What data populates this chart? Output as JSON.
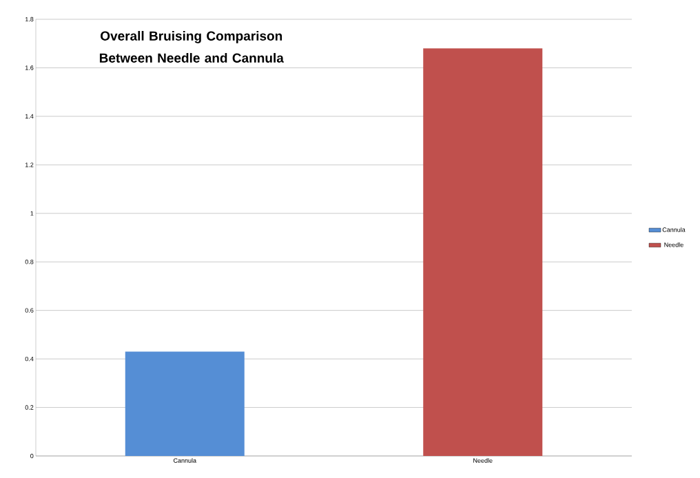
{
  "chart_data": {
    "type": "bar",
    "title": "Overall Bruising Comparison  Between Needle and Cannula",
    "categories": [
      "Cannula",
      "Needle"
    ],
    "series": [
      {
        "name": "Cannula",
        "color": "#558ed5",
        "values": [
          0.43,
          null
        ]
      },
      {
        "name": "Needle",
        "color": "#c0504d",
        "values": [
          null,
          1.68
        ]
      }
    ],
    "ylim": [
      0,
      1.8
    ],
    "yticks": [
      0,
      0.2,
      0.4,
      0.6,
      0.8,
      1,
      1.2,
      1.4,
      1.6,
      1.8
    ],
    "grid": "y",
    "legend": "right"
  }
}
